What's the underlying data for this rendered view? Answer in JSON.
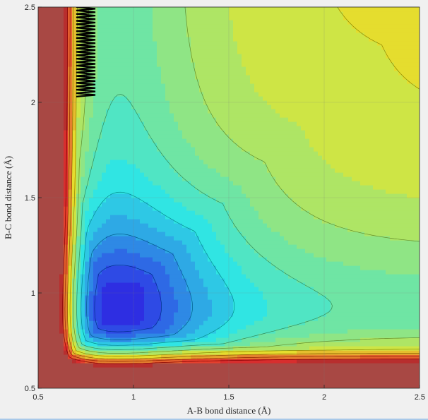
{
  "chart_data": {
    "type": "contour",
    "title": "",
    "xlabel": "A-B bond distance (Å)",
    "ylabel": "B-C bond distance (Å)",
    "xlim": [
      0.5,
      2.5
    ],
    "ylim": [
      0.5,
      2.5
    ],
    "xticks": [
      0.5,
      1,
      1.5,
      2,
      2.5
    ],
    "yticks": [
      0.5,
      1,
      1.5,
      2,
      2.5
    ],
    "xtick_labels": [
      "0.5",
      "1",
      "1.5",
      "2",
      "2.5"
    ],
    "ytick_labels": [
      "0.5",
      "1",
      "1.5",
      "2",
      "2.5"
    ],
    "colormap": "jet",
    "grid": true,
    "filled_contours": true,
    "contour_lines": true,
    "trajectory": {
      "color": "#000000",
      "x_range": [
        0.7,
        0.8
      ],
      "y_range": [
        2.03,
        2.5
      ],
      "oscillations": 26
    }
  }
}
